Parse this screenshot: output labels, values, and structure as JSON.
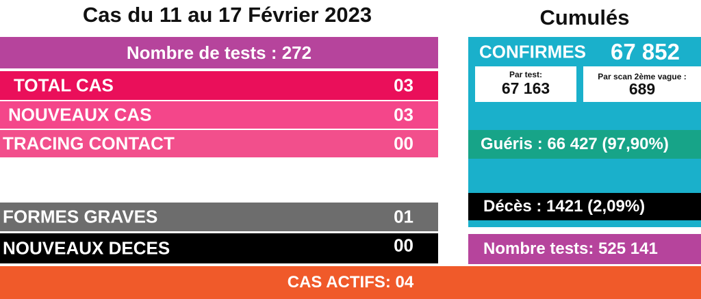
{
  "left": {
    "title": "Cas du 11 au 17 Février 2023",
    "tests_label": "Nombre de tests : 272",
    "rows": [
      {
        "label": "TOTAL CAS",
        "value": "03",
        "color": "#ea0f5a"
      },
      {
        "label": "NOUVEAUX CAS",
        "value": "03",
        "color": "#f4468a"
      },
      {
        "label": "TRACING CONTACT",
        "value": "00",
        "color": "#f24f8c"
      },
      {
        "label": "FORMES GRAVES",
        "value": "01",
        "color": "#6d6d6d"
      },
      {
        "label": "NOUVEAUX DECES",
        "value": "00",
        "color": "#000000"
      }
    ]
  },
  "right": {
    "title": "Cumulés",
    "confirmes_label": "CONFIRMES",
    "confirmes_value": "67 852",
    "par_test_label": "Par test:",
    "par_test_value": "67 163",
    "par_scan_label": "Par scan 2ème vague :",
    "par_scan_value": "689",
    "gueris": "Guéris : 66 427 (97,90%)",
    "deces": "Décès : 1421 (2,09%)",
    "tests": "Nombre tests: 525 141"
  },
  "footer": {
    "actifs_label": "CAS ACTIFS:",
    "actifs_value": "04"
  },
  "colors": {
    "purple": "#b6449c",
    "teal": "#1ab0cb",
    "green": "#17a488",
    "orange": "#f05a2a"
  }
}
